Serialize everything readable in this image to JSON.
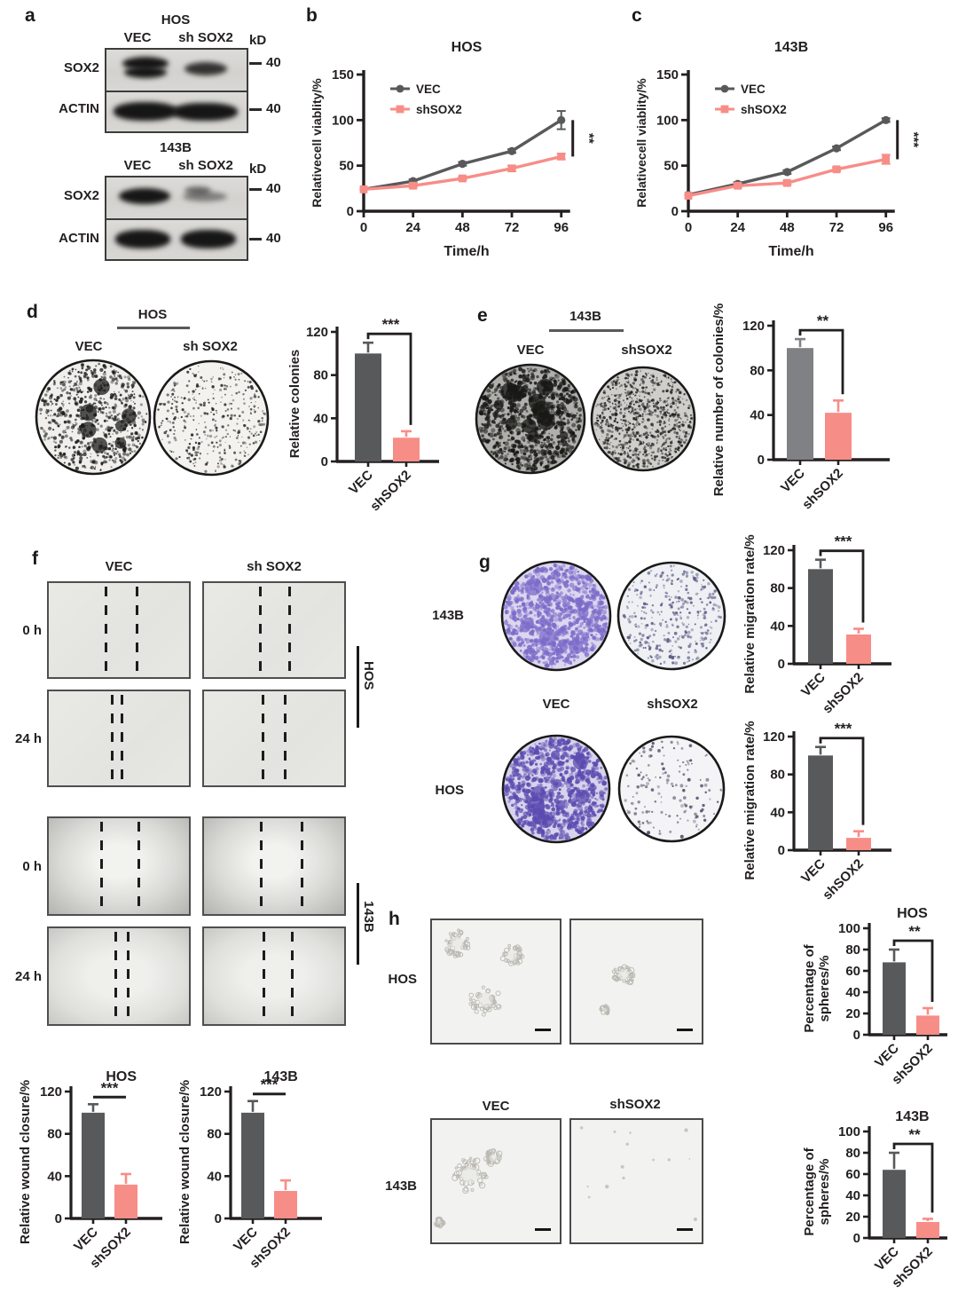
{
  "colors": {
    "vec_dark_gray": "#58595b",
    "vec_mid_gray": "#808184",
    "shsox2_salmon": "#f78d87",
    "text": "#231f20",
    "crystal_violet": "#8b7fd0"
  },
  "figure": {
    "panels": {
      "a": {
        "label": "a",
        "blots": [
          {
            "cell_line": "HOS",
            "lanes": [
              "VEC",
              "sh SOX2"
            ],
            "kd": "kD",
            "rows": [
              {
                "protein": "SOX2",
                "marker": "40"
              },
              {
                "protein": "ACTIN",
                "marker": "40"
              }
            ]
          },
          {
            "cell_line": "143B",
            "lanes": [
              "VEC",
              "sh SOX2"
            ],
            "kd": "kD",
            "rows": [
              {
                "protein": "SOX2",
                "marker": "40"
              },
              {
                "protein": "ACTIN",
                "marker": "40"
              }
            ]
          }
        ]
      },
      "b": {
        "label": "b"
      },
      "c": {
        "label": "c"
      },
      "d": {
        "label": "d",
        "cell_line": "HOS",
        "dish_labels": [
          "VEC",
          "sh SOX2"
        ]
      },
      "e": {
        "label": "e",
        "cell_line": "143B",
        "dish_labels": [
          "VEC",
          "shSOX2"
        ]
      },
      "f": {
        "label": "f",
        "col_labels": [
          "VEC",
          "sh SOX2"
        ],
        "row_labels": [
          "0 h",
          "24 h",
          "0 h",
          "24 h"
        ],
        "side_labels": [
          "HOS",
          "143B"
        ]
      },
      "g": {
        "label": "g",
        "row_labels": [
          "143B",
          "HOS"
        ],
        "col_labels": [
          "VEC",
          "shSOX2"
        ]
      },
      "h": {
        "label": "h",
        "row_labels": [
          "HOS",
          "143B"
        ],
        "col_labels": [
          "VEC",
          "shSOX2"
        ]
      }
    }
  },
  "chart_data": [
    {
      "id": "b",
      "type": "line",
      "title": "HOS",
      "xlabel": "Time/h",
      "ylabel": "Relativecell viablity/%",
      "x": [
        0,
        24,
        48,
        72,
        96
      ],
      "xticks": [
        0,
        24,
        48,
        72,
        96
      ],
      "ylim": [
        0,
        150
      ],
      "yticks": [
        0,
        50,
        100,
        150
      ],
      "legend": "top-left",
      "series": [
        {
          "name": "VEC",
          "color": "#58595b",
          "marker": "circle",
          "values": [
            24,
            33,
            52,
            66,
            100
          ],
          "errors": [
            0,
            2,
            2,
            2,
            10
          ]
        },
        {
          "name": "shSOX2",
          "color": "#f78d87",
          "marker": "square",
          "values": [
            24,
            28,
            36,
            47,
            60
          ],
          "errors": [
            0,
            2,
            2,
            3,
            3
          ]
        }
      ],
      "significance": {
        "label": "**",
        "style": "right-bracket"
      }
    },
    {
      "id": "c",
      "type": "line",
      "title": "143B",
      "xlabel": "Time/h",
      "ylabel": "Relativecell viablity/%",
      "x": [
        0,
        24,
        48,
        72,
        96
      ],
      "xticks": [
        0,
        24,
        48,
        72,
        96
      ],
      "ylim": [
        0,
        150
      ],
      "yticks": [
        0,
        50,
        100,
        150
      ],
      "legend": "top-left",
      "series": [
        {
          "name": "VEC",
          "color": "#58595b",
          "marker": "circle",
          "values": [
            18,
            30,
            43,
            69,
            100
          ],
          "errors": [
            0,
            2,
            2,
            2,
            2
          ]
        },
        {
          "name": "shSOX2",
          "color": "#f78d87",
          "marker": "square",
          "values": [
            17,
            28,
            31,
            46,
            57
          ],
          "errors": [
            0,
            2,
            2,
            2,
            5
          ]
        }
      ],
      "significance": {
        "label": "***",
        "style": "right-bracket"
      }
    },
    {
      "id": "d",
      "type": "bar",
      "ylabel": "Relative colonies",
      "categories": [
        "VEC",
        "shSOX2"
      ],
      "values": [
        100,
        22
      ],
      "errors": [
        10,
        6
      ],
      "colors": [
        "#58595b",
        "#f78d87"
      ],
      "ylim": [
        0,
        120
      ],
      "yticks": [
        0,
        40,
        80,
        120
      ],
      "significance": {
        "label": "***",
        "style": "bracket"
      }
    },
    {
      "id": "e",
      "type": "bar",
      "ylabel": "Relative number of colonies/%",
      "categories": [
        "VEC",
        "shSOX2"
      ],
      "values": [
        100,
        42
      ],
      "errors": [
        8,
        11
      ],
      "colors": [
        "#808184",
        "#f78d87"
      ],
      "ylim": [
        0,
        120
      ],
      "yticks": [
        0,
        40,
        80,
        120
      ],
      "significance": {
        "label": "**",
        "style": "bracket"
      }
    },
    {
      "id": "f_hos",
      "type": "bar",
      "title": "HOS",
      "ylabel": "Relative wound closure/%",
      "categories": [
        "VEC",
        "shSOX2"
      ],
      "values": [
        100,
        32
      ],
      "errors": [
        8,
        10
      ],
      "colors": [
        "#58595b",
        "#f78d87"
      ],
      "ylim": [
        0,
        120
      ],
      "yticks": [
        0,
        40,
        80,
        120
      ],
      "significance": {
        "label": "***",
        "style": "line"
      }
    },
    {
      "id": "f_143b",
      "type": "bar",
      "title": "143B",
      "ylabel": "Relative wound closure/%",
      "categories": [
        "VEC",
        "shSOX2"
      ],
      "values": [
        100,
        26
      ],
      "errors": [
        11,
        10
      ],
      "colors": [
        "#58595b",
        "#f78d87"
      ],
      "ylim": [
        0,
        120
      ],
      "yticks": [
        0,
        40,
        80,
        120
      ],
      "significance": {
        "label": "***",
        "style": "line"
      }
    },
    {
      "id": "g_143b",
      "type": "bar",
      "ylabel": "Relative migration rate/%",
      "categories": [
        "VEC",
        "shSOX2"
      ],
      "values": [
        100,
        31
      ],
      "errors": [
        10,
        6
      ],
      "colors": [
        "#58595b",
        "#f78d87"
      ],
      "ylim": [
        0,
        120
      ],
      "yticks": [
        0,
        40,
        80,
        120
      ],
      "significance": {
        "label": "***",
        "style": "bracket"
      }
    },
    {
      "id": "g_hos",
      "type": "bar",
      "ylabel": "Relative migration rate/%",
      "categories": [
        "VEC",
        "shSOX2"
      ],
      "values": [
        100,
        13
      ],
      "errors": [
        9,
        7
      ],
      "colors": [
        "#58595b",
        "#f78d87"
      ],
      "ylim": [
        0,
        120
      ],
      "yticks": [
        0,
        40,
        80,
        120
      ],
      "significance": {
        "label": "***",
        "style": "bracket"
      }
    },
    {
      "id": "h_hos",
      "type": "bar",
      "title": "HOS",
      "ylabel": [
        "Percentage of",
        "spheres/%"
      ],
      "categories": [
        "VEC",
        "shSOX2"
      ],
      "values": [
        68,
        18
      ],
      "errors": [
        12,
        7
      ],
      "colors": [
        "#58595b",
        "#f78d87"
      ],
      "ylim": [
        0,
        100
      ],
      "yticks": [
        0,
        20,
        40,
        60,
        80,
        100
      ],
      "significance": {
        "label": "**",
        "style": "bracket"
      }
    },
    {
      "id": "h_143b",
      "type": "bar",
      "title": "143B",
      "ylabel": [
        "Percentage of",
        "spheres/%"
      ],
      "categories": [
        "VEC",
        "shSOX2"
      ],
      "values": [
        64,
        15
      ],
      "errors": [
        16,
        3
      ],
      "colors": [
        "#58595b",
        "#f78d87"
      ],
      "ylim": [
        0,
        100
      ],
      "yticks": [
        0,
        20,
        40,
        60,
        80,
        100
      ],
      "significance": {
        "label": "**",
        "style": "bracket"
      }
    }
  ]
}
